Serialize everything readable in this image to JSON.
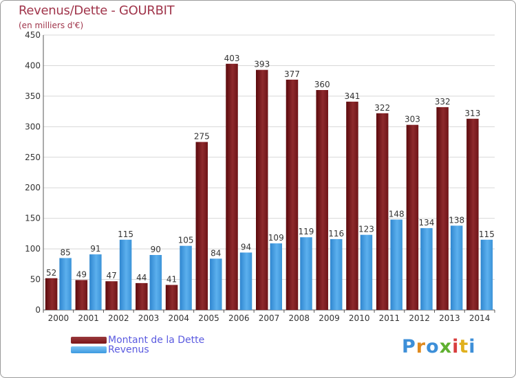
{
  "chart_data": {
    "type": "bar",
    "title": "Revenus/Dette - GOURBIT",
    "subtitle": "(en milliers d'€)",
    "categories": [
      "2000",
      "2001",
      "2002",
      "2003",
      "2004",
      "2005",
      "2006",
      "2007",
      "2008",
      "2009",
      "2010",
      "2011",
      "2012",
      "2013",
      "2014"
    ],
    "series": [
      {
        "name": "Montant de la Dette",
        "color": "#7a1518",
        "values": [
          52,
          49,
          47,
          44,
          41,
          275,
          403,
          393,
          377,
          360,
          341,
          322,
          303,
          332,
          313
        ]
      },
      {
        "name": "Revenus",
        "color": "#3d9ae0",
        "values": [
          85,
          91,
          115,
          90,
          105,
          84,
          94,
          109,
          119,
          116,
          123,
          148,
          134,
          138,
          115
        ]
      }
    ],
    "ylim": [
      0,
      450
    ],
    "yticks": [
      0,
      50,
      100,
      150,
      200,
      250,
      300,
      350,
      400,
      450
    ],
    "grid": true,
    "legend_position": "bottom-left"
  },
  "logo": {
    "text": "Proxiti",
    "colors": [
      "#3d8fd8",
      "#e08a1e",
      "#3d8fd8",
      "#5fb030",
      "#d83d3d",
      "#e0b01e",
      "#3d8fd8"
    ]
  }
}
